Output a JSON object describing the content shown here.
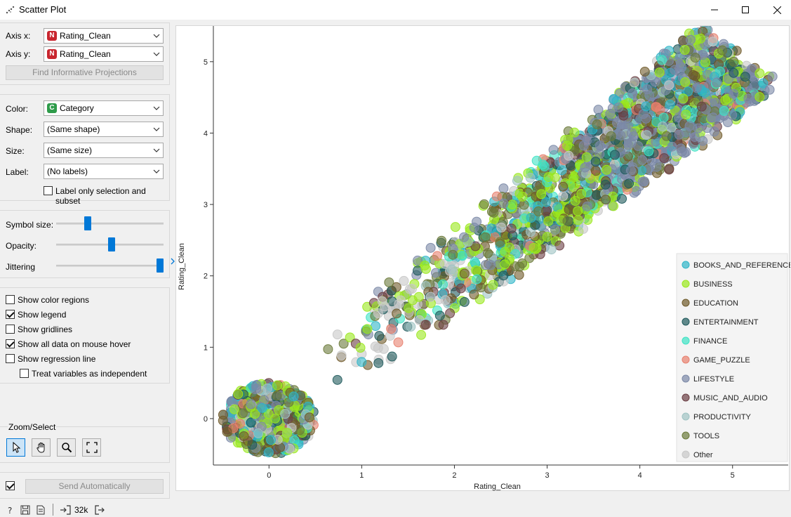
{
  "window": {
    "title": "Scatter Plot"
  },
  "axes_panel": {
    "axis_x_label": "Axis x:",
    "axis_x_value": "Rating_Clean",
    "axis_x_type": "N",
    "axis_y_label": "Axis y:",
    "axis_y_value": "Rating_Clean",
    "axis_y_type": "N",
    "find_button": "Find Informative Projections"
  },
  "attributes_panel": {
    "color_label": "Color:",
    "color_value": "Category",
    "color_type": "C",
    "shape_label": "Shape:",
    "shape_value": "(Same shape)",
    "size_label": "Size:",
    "size_value": "(Same size)",
    "label_label": "Label:",
    "label_value": "(No labels)",
    "label_only_selection": "Label only selection and subset"
  },
  "sliders": {
    "symbol_size_label": "Symbol size:",
    "symbol_size": 0.28,
    "opacity_label": "Opacity:",
    "opacity": 0.52,
    "jittering_label": "Jittering",
    "jittering": 1.0
  },
  "options": [
    {
      "label": "Show color regions",
      "checked": false
    },
    {
      "label": "Show legend",
      "checked": true
    },
    {
      "label": "Show gridlines",
      "checked": false
    },
    {
      "label": "Show all data on mouse hover",
      "checked": true
    },
    {
      "label": "Show regression line",
      "checked": false
    },
    {
      "label": "Treat variables as independent",
      "checked": false
    }
  ],
  "zoom_select": {
    "title": "Zoom/Select",
    "tools": [
      "pointer-icon",
      "pan-hand-icon",
      "zoom-magnifier-icon",
      "zoom-reset-icon"
    ]
  },
  "send": {
    "auto_checked": true,
    "button": "Send Automatically"
  },
  "status": {
    "data_count": "32k"
  },
  "chart_data": {
    "type": "scatter",
    "xlabel": "Rating_Clean",
    "ylabel": "Rating_Clean",
    "xlim": [
      -0.6,
      5.6
    ],
    "ylim": [
      -0.65,
      5.5
    ],
    "x_ticks": [
      "0",
      "1",
      "2",
      "3",
      "4",
      "5"
    ],
    "y_ticks": [
      "0",
      "1",
      "2",
      "3",
      "4",
      "5"
    ],
    "legend_position": "bottom-right",
    "series": [
      {
        "name": "BOOKS_AND_REFERENCE",
        "color": "#2fb5c8"
      },
      {
        "name": "BUSINESS",
        "color": "#9ae81d"
      },
      {
        "name": "EDUCATION",
        "color": "#6f5a2a"
      },
      {
        "name": "ENTERTAINMENT",
        "color": "#1f5a5c"
      },
      {
        "name": "FINANCE",
        "color": "#3de3c4"
      },
      {
        "name": "GAME_PUZZLE",
        "color": "#e8806e"
      },
      {
        "name": "LIFESTYLE",
        "color": "#7b88a6"
      },
      {
        "name": "MUSIC_AND_AUDIO",
        "color": "#6b3f44"
      },
      {
        "name": "PRODUCTIVITY",
        "color": "#9fc3c3"
      },
      {
        "name": "TOOLS",
        "color": "#6b7a3a"
      },
      {
        "name": "Other",
        "color": "#c8c8c8"
      }
    ],
    "clusters": [
      {
        "description_center": [
          0.0,
          0.0
        ],
        "spread": 0.45
      },
      {
        "description_band_from": [
          0.7,
          0.7
        ],
        "description_band_to": [
          5.0,
          5.0
        ],
        "band_width": 0.55
      }
    ]
  }
}
